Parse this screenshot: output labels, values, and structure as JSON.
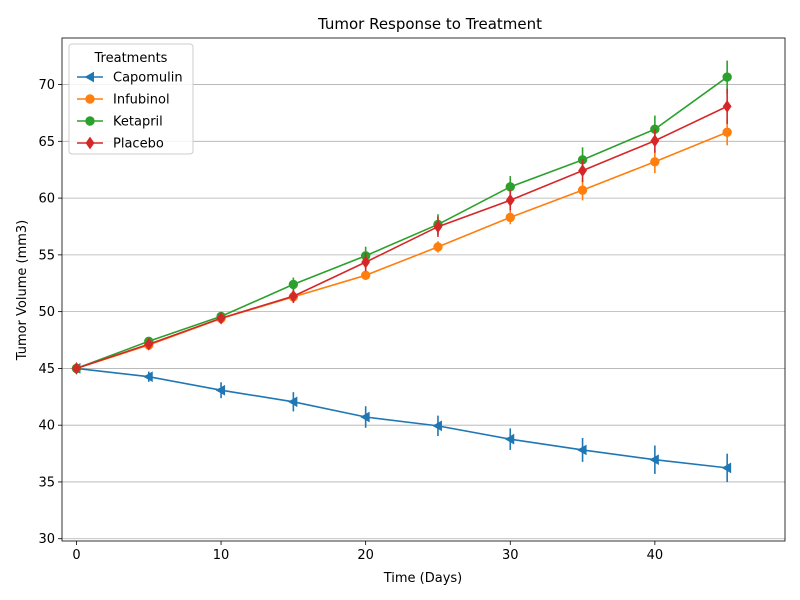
{
  "chart_data": {
    "type": "line",
    "title": "Tumor Response to Treatment",
    "xlabel": "Time (Days)",
    "ylabel": "Tumor Volume (mm3)",
    "xlim": [
      -1,
      49
    ],
    "ylim": [
      29.8,
      74.1
    ],
    "xticks": [
      0,
      10,
      20,
      30,
      40
    ],
    "yticks": [
      30,
      35,
      40,
      45,
      50,
      55,
      60,
      65,
      70
    ],
    "grid": "horizontal",
    "legend": {
      "title": "Treatments",
      "position": "upper-left"
    },
    "x": [
      0,
      5,
      10,
      15,
      20,
      25,
      30,
      35,
      40,
      45
    ],
    "series": [
      {
        "name": "Capomulin",
        "color": "#1f77b4",
        "marker": "triangle-left",
        "values": [
          45.0,
          44.27,
          43.08,
          42.06,
          40.72,
          39.94,
          38.77,
          37.82,
          36.96,
          36.24
        ],
        "errors": [
          0.0,
          0.45,
          0.7,
          0.85,
          0.95,
          0.9,
          0.95,
          1.05,
          1.25,
          1.25
        ]
      },
      {
        "name": "Infubinol",
        "color": "#ff7f0e",
        "marker": "circle",
        "values": [
          45.0,
          47.06,
          49.4,
          51.3,
          53.2,
          55.7,
          58.3,
          60.7,
          63.2,
          65.8
        ],
        "errors": [
          0.0,
          0.2,
          0.3,
          0.4,
          0.4,
          0.5,
          0.6,
          0.9,
          1.0,
          1.15
        ]
      },
      {
        "name": "Ketapril",
        "color": "#2ca02c",
        "marker": "circle",
        "values": [
          45.0,
          47.39,
          49.58,
          52.4,
          54.92,
          57.68,
          60.99,
          63.37,
          66.07,
          70.66
        ],
        "errors": [
          0.0,
          0.25,
          0.4,
          0.6,
          0.8,
          0.9,
          0.95,
          1.1,
          1.2,
          1.45
        ]
      },
      {
        "name": "Placebo",
        "color": "#d62728",
        "marker": "diamond",
        "values": [
          45.0,
          47.13,
          49.42,
          51.36,
          54.36,
          57.48,
          59.81,
          62.42,
          65.05,
          68.08
        ],
        "errors": [
          0.0,
          0.2,
          0.4,
          0.6,
          0.8,
          0.9,
          0.9,
          1.0,
          1.05,
          1.55
        ]
      }
    ]
  }
}
